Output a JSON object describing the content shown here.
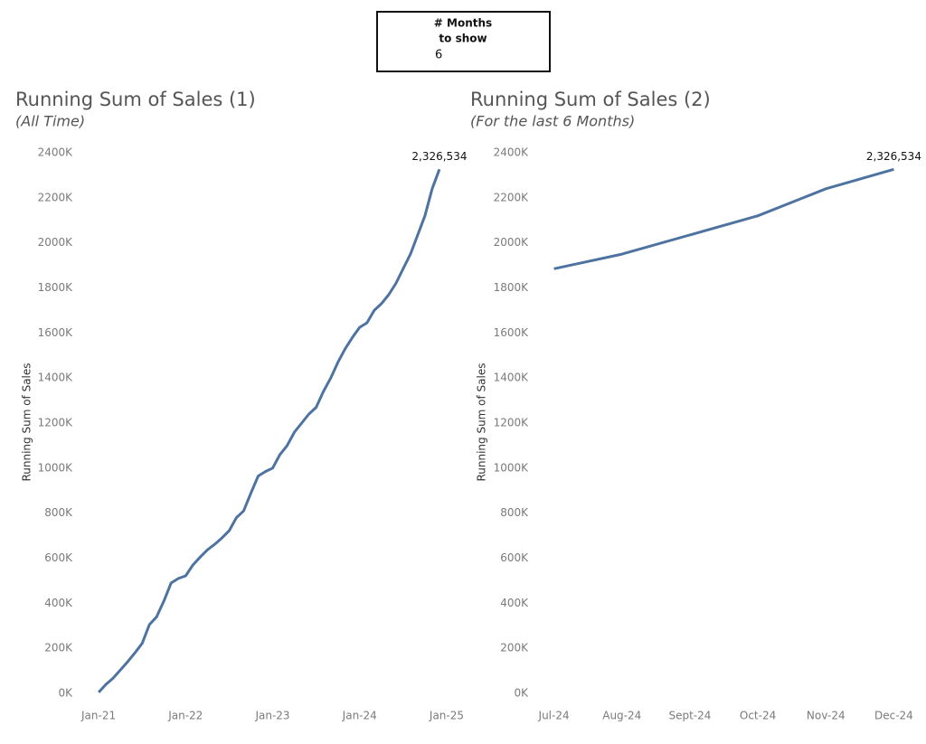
{
  "parameter": {
    "label": [
      "# Months",
      "to show"
    ],
    "value": 6
  },
  "chart_data": [
    {
      "type": "line",
      "title": "Running Sum of Sales (1)",
      "subtitle": "(All Time)",
      "y_label": "Running Sum of Sales",
      "color": "#4e73a0",
      "grid": false,
      "x": [
        "2021-01",
        "2021-02",
        "2021-03",
        "2021-04",
        "2021-05",
        "2021-06",
        "2021-07",
        "2021-08",
        "2021-09",
        "2021-10",
        "2021-11",
        "2021-12",
        "2022-01",
        "2022-02",
        "2022-03",
        "2022-04",
        "2022-05",
        "2022-06",
        "2022-07",
        "2022-08",
        "2022-09",
        "2022-10",
        "2022-11",
        "2022-12",
        "2023-01",
        "2023-02",
        "2023-03",
        "2023-04",
        "2023-05",
        "2023-06",
        "2023-07",
        "2023-08",
        "2023-09",
        "2023-10",
        "2023-11",
        "2023-12",
        "2024-01",
        "2024-02",
        "2024-03",
        "2024-04",
        "2024-05",
        "2024-06",
        "2024-07",
        "2024-08",
        "2024-09",
        "2024-10",
        "2024-11",
        "2024-12"
      ],
      "values": [
        5000,
        40000,
        68000,
        104000,
        140000,
        180000,
        222000,
        305000,
        340000,
        410000,
        490000,
        510000,
        522000,
        570000,
        605000,
        637000,
        662000,
        690000,
        722000,
        780000,
        810000,
        890000,
        965000,
        985000,
        1000000,
        1060000,
        1100000,
        1160000,
        1200000,
        1240000,
        1270000,
        1340000,
        1400000,
        1470000,
        1530000,
        1580000,
        1625000,
        1645000,
        1700000,
        1730000,
        1770000,
        1820000,
        1885000,
        1950000,
        2035000,
        2120000,
        2240000,
        2326534
      ],
      "value_labels": [
        null,
        null,
        null,
        null,
        null,
        null,
        null,
        null,
        null,
        null,
        null,
        null,
        null,
        null,
        null,
        null,
        null,
        null,
        null,
        null,
        null,
        null,
        null,
        null,
        null,
        null,
        null,
        null,
        null,
        null,
        null,
        null,
        null,
        null,
        null,
        null,
        null,
        null,
        null,
        null,
        null,
        null,
        null,
        null,
        null,
        null,
        null,
        "2,326,534"
      ],
      "xlim": [
        "2020-10",
        "2025-03"
      ],
      "xticks": [
        {
          "value": "2021-01",
          "label": "Jan-21"
        },
        {
          "value": "2022-01",
          "label": "Jan-22"
        },
        {
          "value": "2023-01",
          "label": "Jan-23"
        },
        {
          "value": "2024-01",
          "label": "Jan-24"
        },
        {
          "value": "2025-01",
          "label": "Jan-25"
        }
      ],
      "ylim": [
        -40000,
        2440000
      ],
      "yticks": [
        {
          "value": 0,
          "label": "0K"
        },
        {
          "value": 200000,
          "label": "200K"
        },
        {
          "value": 400000,
          "label": "400K"
        },
        {
          "value": 600000,
          "label": "600K"
        },
        {
          "value": 800000,
          "label": "800K"
        },
        {
          "value": 1000000,
          "label": "1000K"
        },
        {
          "value": 1200000,
          "label": "1200K"
        },
        {
          "value": 1400000,
          "label": "1400K"
        },
        {
          "value": 1600000,
          "label": "1600K"
        },
        {
          "value": 1800000,
          "label": "1800K"
        },
        {
          "value": 2000000,
          "label": "2000K"
        },
        {
          "value": 2200000,
          "label": "2200K"
        },
        {
          "value": 2400000,
          "label": "2400K"
        }
      ]
    },
    {
      "type": "line",
      "title": "Running Sum of Sales (2)",
      "subtitle": "(For the last 6 Months)",
      "y_label": "Running Sum of Sales",
      "color": "#4e73a0",
      "grid": false,
      "categories": [
        "Jul-24",
        "Aug-24",
        "Sept-24",
        "Oct-24",
        "Nov-24",
        "Dec-24"
      ],
      "values": [
        1885000,
        1950000,
        2035000,
        2120000,
        2240000,
        2326534
      ],
      "value_labels": [
        null,
        null,
        null,
        null,
        null,
        "2,326,534"
      ],
      "ylim": [
        -40000,
        2440000
      ],
      "yticks": [
        {
          "value": 0,
          "label": "0K"
        },
        {
          "value": 200000,
          "label": "200K"
        },
        {
          "value": 400000,
          "label": "400K"
        },
        {
          "value": 600000,
          "label": "600K"
        },
        {
          "value": 800000,
          "label": "800K"
        },
        {
          "value": 1000000,
          "label": "1000K"
        },
        {
          "value": 1200000,
          "label": "1200K"
        },
        {
          "value": 1400000,
          "label": "1400K"
        },
        {
          "value": 1600000,
          "label": "1600K"
        },
        {
          "value": 1800000,
          "label": "1800K"
        },
        {
          "value": 2000000,
          "label": "2000K"
        },
        {
          "value": 2200000,
          "label": "2200K"
        },
        {
          "value": 2400000,
          "label": "2400K"
        }
      ]
    }
  ]
}
